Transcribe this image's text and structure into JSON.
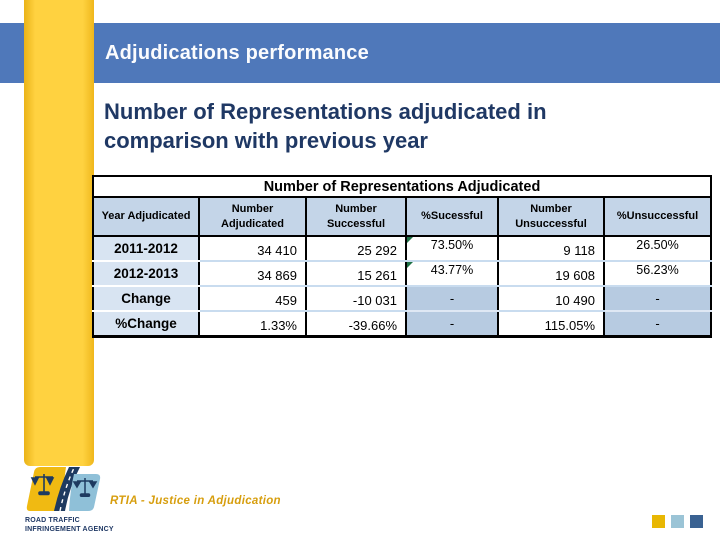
{
  "header": {
    "title": "Adjudications performance"
  },
  "subtitle": "Number of Representations adjudicated in comparison with previous year",
  "table": {
    "title": "Number of Representations Adjudicated",
    "columns": [
      "Year Adjudicated",
      "Number Adjudicated",
      "Number Successful",
      "%Sucessful",
      "Number Unsuccessful",
      "%Unsuccessful"
    ],
    "rows": [
      [
        "2011-2012",
        "34 410",
        "25 292",
        "73.50%",
        "9 118",
        "26.50%"
      ],
      [
        "2012-2013",
        "34 869",
        "15 261",
        "43.77%",
        "19 608",
        "56.23%"
      ],
      [
        "Change",
        "459",
        "-10 031",
        "-",
        "10 490",
        "-"
      ],
      [
        "%Change",
        "1.33%",
        "-39.66%",
        "-",
        "115.05%",
        "-"
      ]
    ],
    "error_markers": [
      [
        0,
        3
      ],
      [
        1,
        3
      ]
    ]
  },
  "footer": {
    "logo_caption_line1": "ROAD TRAFFIC",
    "logo_caption_line2": "INFRINGEMENT AGENCY",
    "tagline": "RTIA - Justice in Adjudication"
  },
  "colors": {
    "header_band_blue": "#4f78ba",
    "sidebar_yellow": "#ffd240",
    "title_text_white": "#fbfcfe",
    "subtitle_navy": "#1f3864",
    "table_header_bg": "#c4d5e8",
    "row_label_bg": "#d8e4f2",
    "dash_cell_bg": "#b7cbe1",
    "error_marker_green": "#1e7145",
    "tagline_gold": "#d79e0e",
    "square_gold": "#e8b703",
    "square_light_blue": "#9bc4d6",
    "square_steel_blue": "#3a6292"
  }
}
